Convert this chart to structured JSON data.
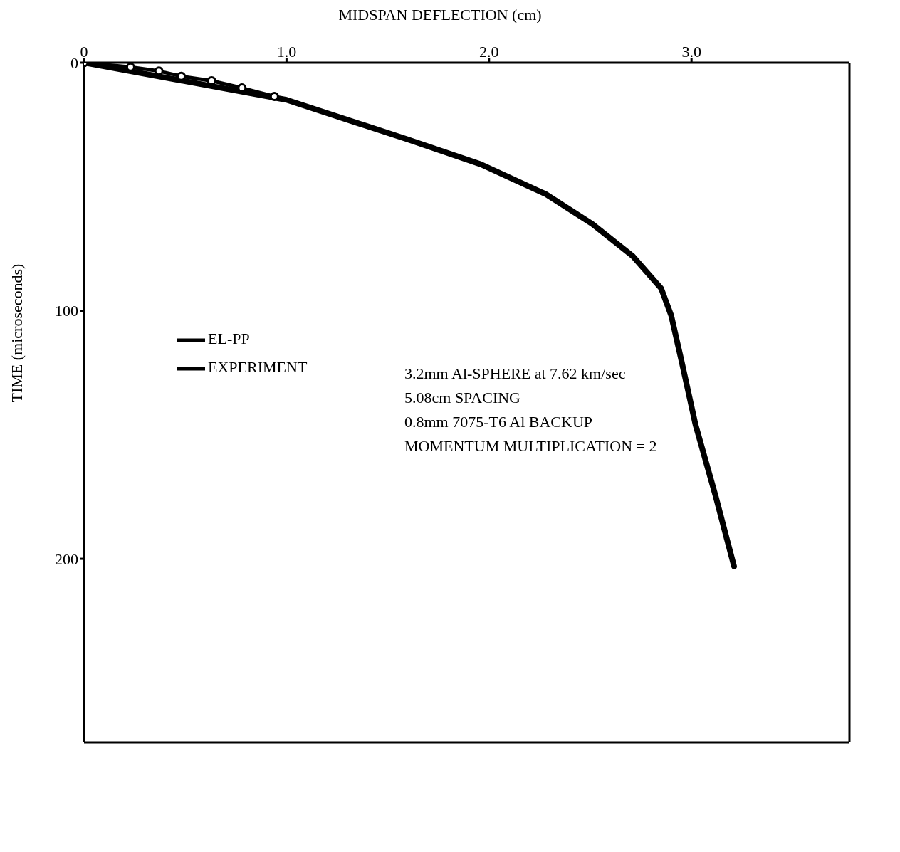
{
  "chart_data": {
    "type": "line",
    "xlabel": "MIDSPAN DEFLECTION (cm)",
    "ylabel": "TIME (microseconds)",
    "xlim": [
      0,
      3.78
    ],
    "xticks": [
      0,
      {
        "value": 1,
        "label": "1.0"
      },
      {
        "value": 2,
        "label": "2.0"
      },
      {
        "value": 3,
        "label": "3.0"
      }
    ],
    "ylim": [
      274,
      0
    ],
    "yticks": [
      0,
      100,
      200
    ],
    "legend": "left",
    "series": [
      {
        "name": "EL-PP",
        "color": "#000000",
        "marker": "none",
        "x": [
          0,
          1.0,
          1.6,
          1.96,
          2.28,
          2.51,
          2.71,
          2.85,
          2.9,
          2.95,
          3.02,
          3.12,
          3.21
        ],
        "values": [
          0,
          15,
          31,
          41,
          53,
          65,
          78,
          91,
          102,
          120,
          146,
          175,
          203
        ]
      },
      {
        "name": "EXPERIMENT",
        "color": "#000000",
        "marker": "circle",
        "x": [
          0,
          0.23,
          0.37,
          0.48,
          0.63,
          0.78,
          0.94
        ],
        "values": [
          0,
          1.8,
          3.4,
          5.5,
          7.3,
          10.2,
          13.6
        ]
      }
    ],
    "annotations": [
      "3.2mm Al-SPHERE at 7.62 km/sec",
      "5.08cm SPACING",
      "0.8mm 7075-T6 Al BACKUP",
      "MOMENTUM MULTIPLICATION = 2"
    ]
  }
}
